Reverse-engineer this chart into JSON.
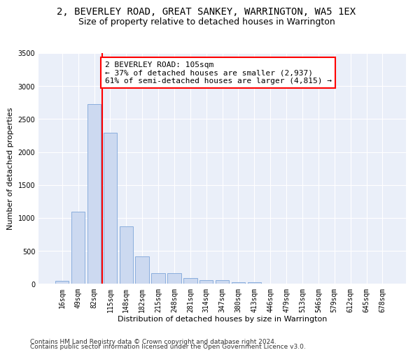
{
  "title": "2, BEVERLEY ROAD, GREAT SANKEY, WARRINGTON, WA5 1EX",
  "subtitle": "Size of property relative to detached houses in Warrington",
  "xlabel": "Distribution of detached houses by size in Warrington",
  "ylabel": "Number of detached properties",
  "categories": [
    "16sqm",
    "49sqm",
    "82sqm",
    "115sqm",
    "148sqm",
    "182sqm",
    "215sqm",
    "248sqm",
    "281sqm",
    "314sqm",
    "347sqm",
    "380sqm",
    "413sqm",
    "446sqm",
    "479sqm",
    "513sqm",
    "546sqm",
    "579sqm",
    "612sqm",
    "645sqm",
    "678sqm"
  ],
  "values": [
    50,
    1100,
    2730,
    2290,
    870,
    420,
    165,
    165,
    90,
    60,
    55,
    30,
    30,
    0,
    0,
    0,
    0,
    0,
    0,
    0,
    0
  ],
  "bar_color": "#ccd9f0",
  "bar_edgecolor": "#8aaedd",
  "redline_x": 2.5,
  "annot_title": "2 BEVERLEY ROAD: 105sqm",
  "annotation_line1": "← 37% of detached houses are smaller (2,937)",
  "annotation_line2": "61% of semi-detached houses are larger (4,815) →",
  "ylim": [
    0,
    3500
  ],
  "yticks": [
    0,
    500,
    1000,
    1500,
    2000,
    2500,
    3000,
    3500
  ],
  "bg_color": "#eaeff9",
  "grid_color": "#ffffff",
  "footer1": "Contains HM Land Registry data © Crown copyright and database right 2024.",
  "footer2": "Contains public sector information licensed under the Open Government Licence v3.0.",
  "title_fontsize": 10,
  "subtitle_fontsize": 9,
  "annot_fontsize": 8,
  "axis_label_fontsize": 8,
  "tick_fontsize": 7,
  "footer_fontsize": 6.5
}
